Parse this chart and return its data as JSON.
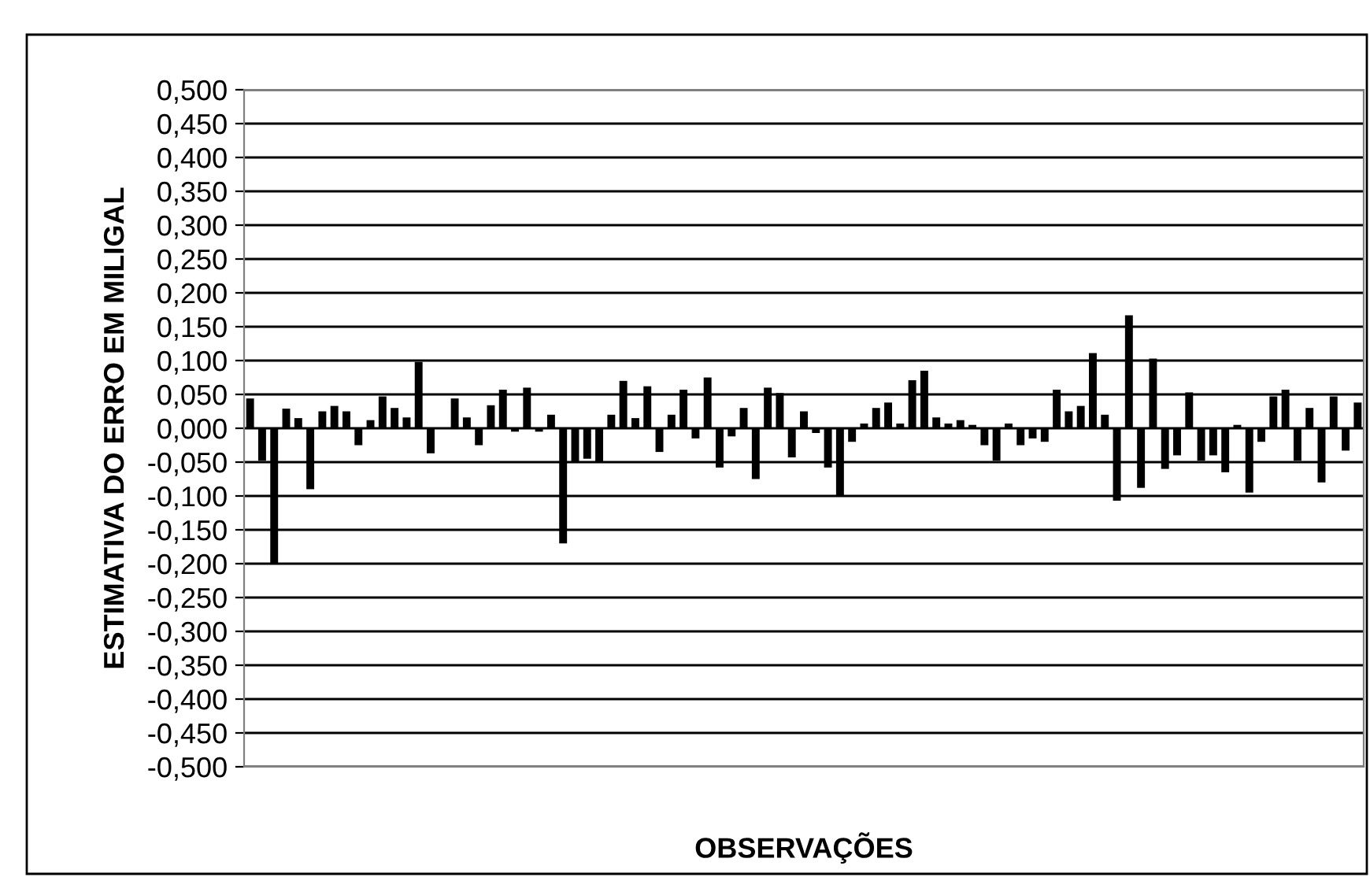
{
  "chart_data": {
    "type": "bar",
    "xlabel": "OBSERVAÇÕES",
    "ylabel": "ESTIMATIVA DO ERRO EM MILIGAL",
    "categories": [
      null,
      null,
      null,
      null,
      null,
      null,
      null,
      null,
      null,
      null,
      null,
      null,
      null,
      null,
      null,
      null,
      null,
      null,
      null,
      null,
      null,
      null,
      null,
      null,
      null,
      null,
      null,
      null,
      null,
      null,
      null,
      null,
      null,
      null,
      null,
      null,
      null,
      null,
      null,
      null,
      null,
      null,
      null,
      null,
      null,
      null,
      null,
      null,
      null,
      null,
      null,
      null,
      null,
      null,
      null,
      null,
      null,
      null,
      null,
      null,
      null,
      null,
      null,
      null,
      null,
      null,
      null,
      null,
      null,
      null,
      null,
      null,
      null,
      null,
      null,
      null,
      null,
      null,
      null,
      null,
      null,
      null,
      null,
      null,
      null,
      null,
      null,
      null,
      null,
      null,
      null,
      null,
      null
    ],
    "values": [
      0.044,
      -0.048,
      -0.2,
      0.029,
      0.015,
      -0.09,
      0.025,
      0.033,
      0.025,
      -0.025,
      0.012,
      0.047,
      0.03,
      0.016,
      0.098,
      -0.037,
      0,
      0.044,
      0.016,
      -0.025,
      0.034,
      0.057,
      -0.005,
      0.06,
      -0.005,
      0.02,
      -0.17,
      -0.05,
      -0.045,
      -0.05,
      0.02,
      0.07,
      0.015,
      0.062,
      -0.035,
      0.02,
      0.057,
      -0.015,
      0.075,
      -0.058,
      -0.012,
      0.03,
      -0.075,
      0.06,
      0.052,
      -0.043,
      0.025,
      -0.007,
      -0.058,
      -0.1,
      -0.02,
      0.007,
      0.03,
      0.038,
      0.007,
      0.071,
      0.085,
      0.016,
      0.007,
      0.012,
      0.005,
      -0.025,
      -0.048,
      0.007,
      -0.025,
      -0.015,
      -0.02,
      0.057,
      0.025,
      0.033,
      0.111,
      0.02,
      -0.107,
      0.167,
      -0.088,
      0.103,
      -0.06,
      -0.04,
      0.053,
      -0.048,
      -0.04,
      -0.065,
      0.005,
      -0.095,
      -0.02,
      0.047,
      0.057,
      -0.048,
      0.03,
      -0.08,
      0.047,
      -0.033,
      0.038
    ],
    "color": "#000000",
    "ylim": [
      -0.5,
      0.5
    ],
    "yticks": [
      {
        "value": -0.5,
        "label": "-0,500"
      },
      {
        "value": -0.45,
        "label": "-0,450"
      },
      {
        "value": -0.4,
        "label": "-0,400"
      },
      {
        "value": -0.35,
        "label": "-0,350"
      },
      {
        "value": -0.3,
        "label": "-0,300"
      },
      {
        "value": -0.25,
        "label": "-0,250"
      },
      {
        "value": -0.2,
        "label": "-0,200"
      },
      {
        "value": -0.15,
        "label": "-0,150"
      },
      {
        "value": -0.1,
        "label": "-0,100"
      },
      {
        "value": -0.05,
        "label": "-0,050"
      },
      {
        "value": 0,
        "label": "0,000"
      },
      {
        "value": 0.05,
        "label": "0,050"
      },
      {
        "value": 0.1,
        "label": "0,100"
      },
      {
        "value": 0.15,
        "label": "0,150"
      },
      {
        "value": 0.2,
        "label": "0,200"
      },
      {
        "value": 0.25,
        "label": "0,250"
      },
      {
        "value": 0.3,
        "label": "0,300"
      },
      {
        "value": 0.35,
        "label": "0,350"
      },
      {
        "value": 0.4,
        "label": "0,400"
      },
      {
        "value": 0.45,
        "label": "0,450"
      },
      {
        "value": 0.5,
        "label": "0,500"
      }
    ],
    "grid": "y",
    "tick_labels": "y"
  }
}
